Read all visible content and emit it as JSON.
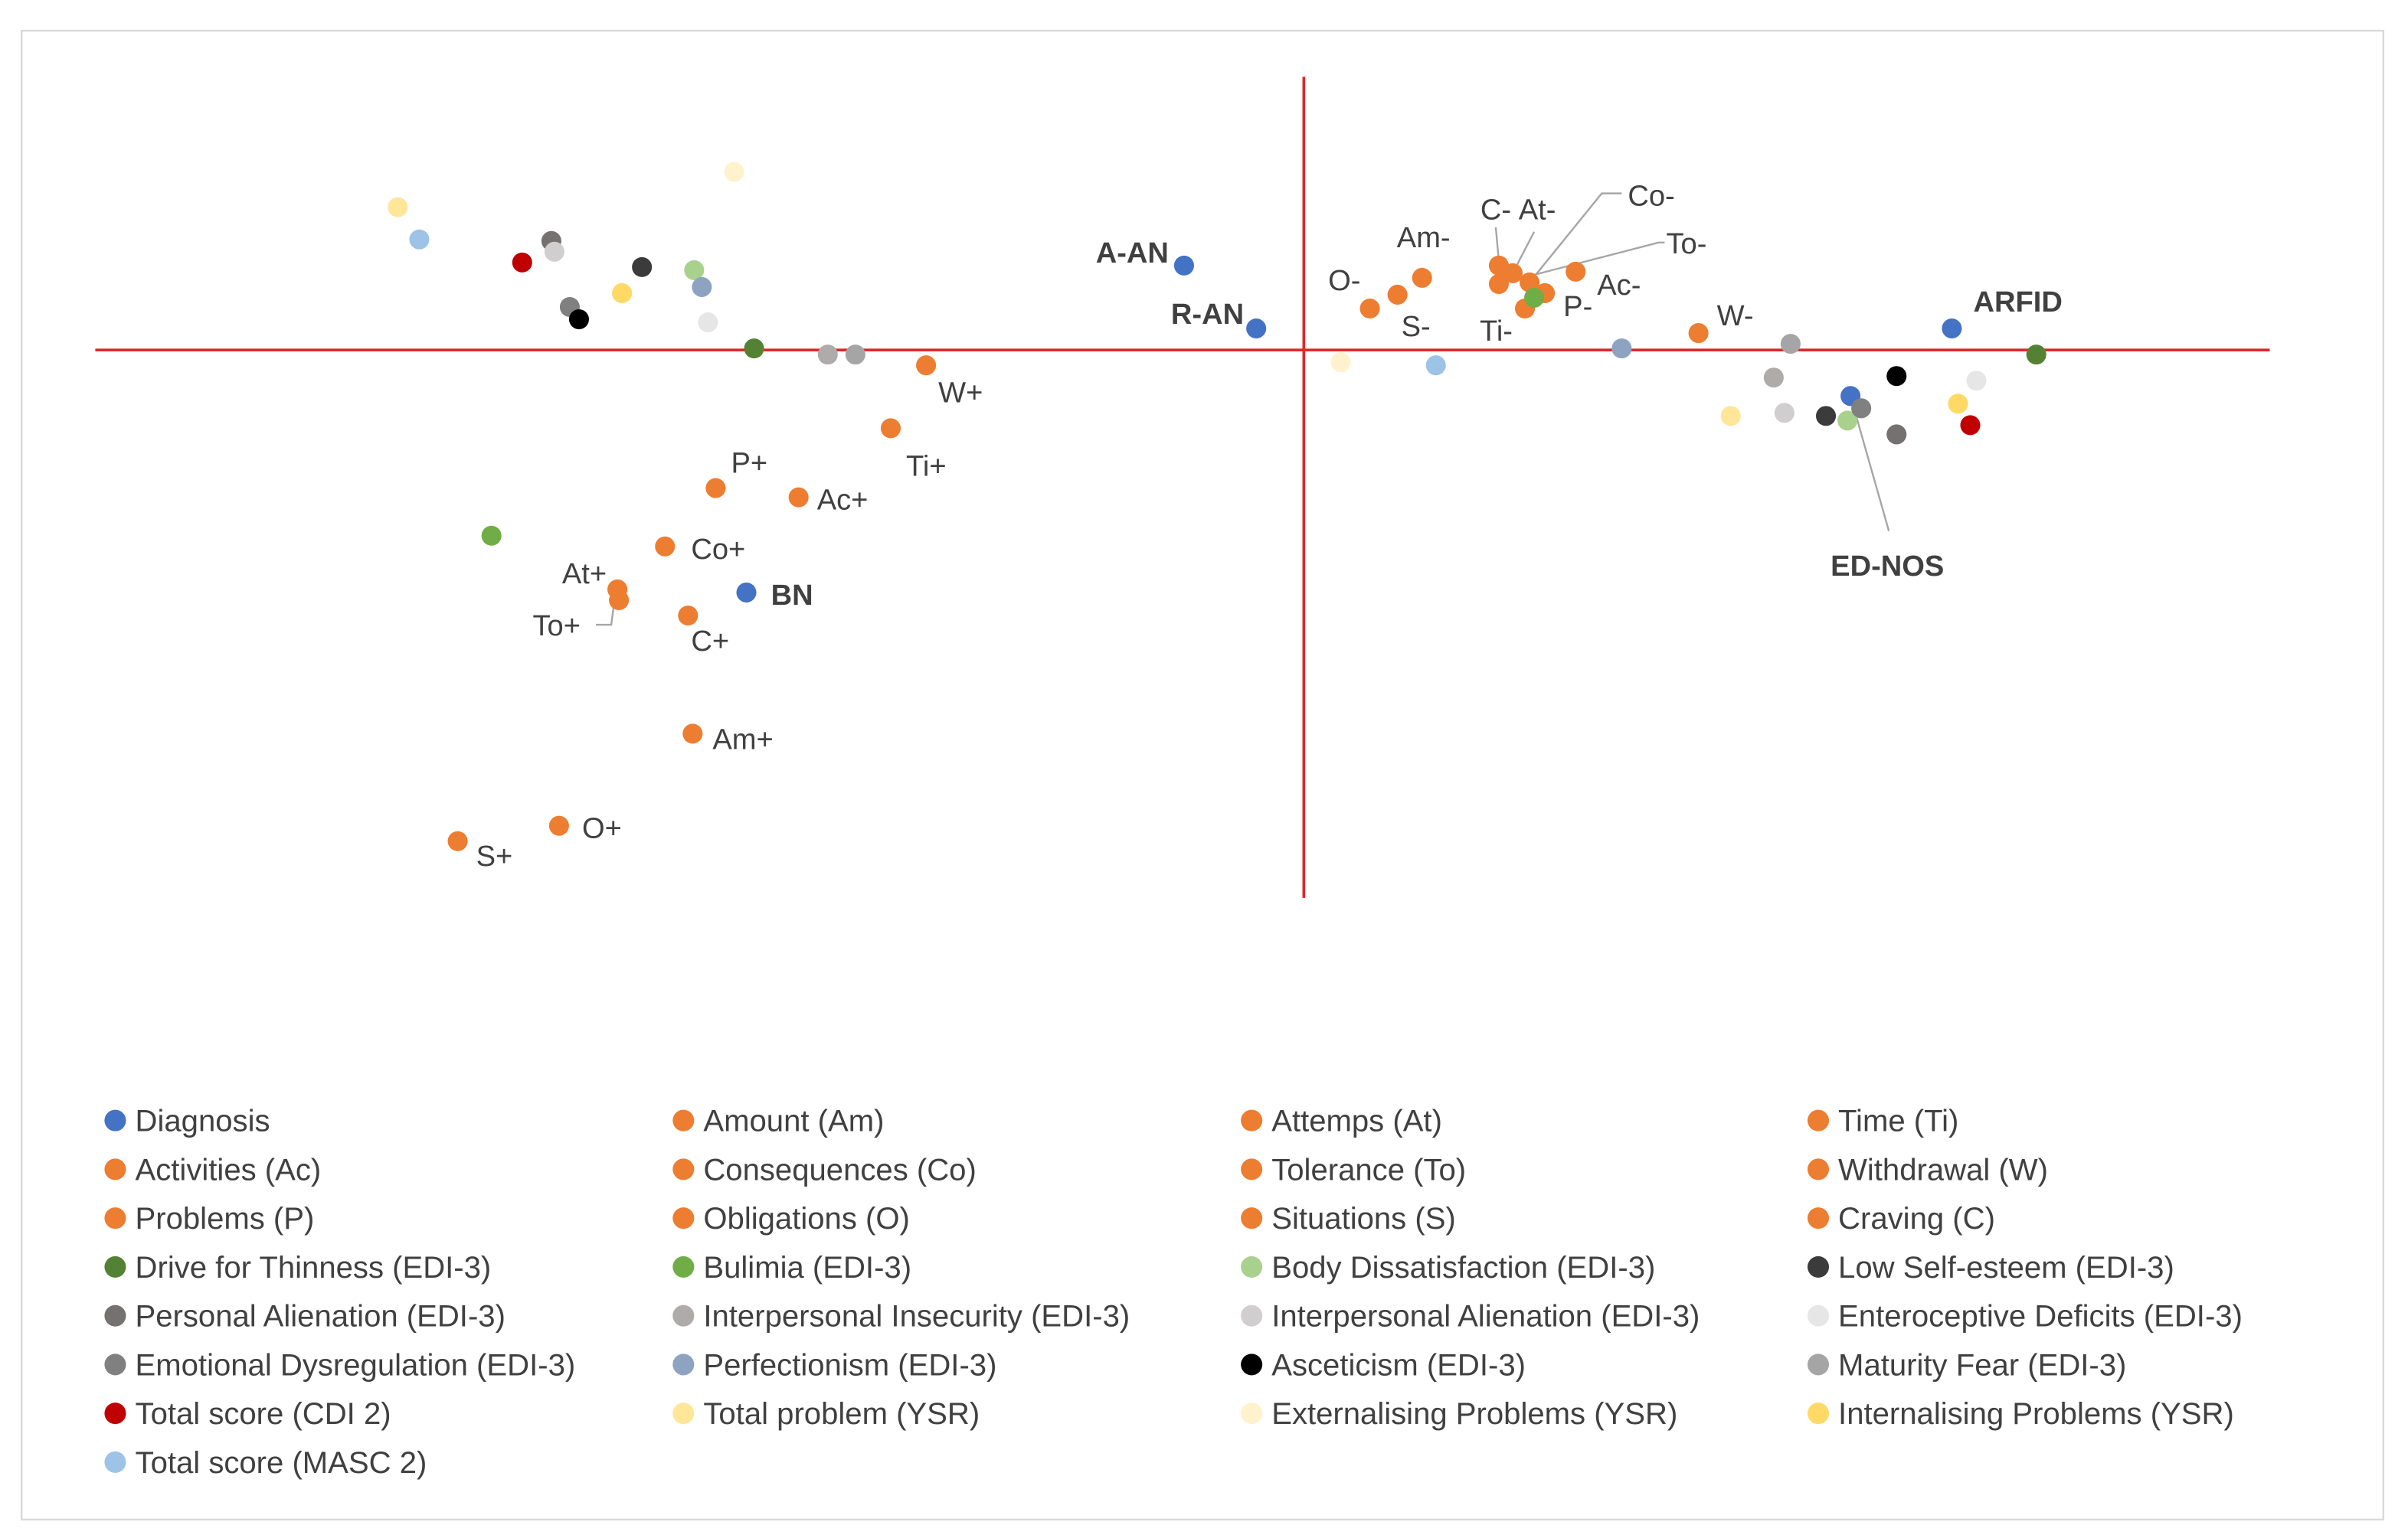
{
  "chart_data": {
    "type": "scatter",
    "title": "",
    "xlabel": "",
    "ylabel": "",
    "xlim": [
      -7.9,
      6.3
    ],
    "ylim": [
      -3.6,
      1.8
    ],
    "grid": false,
    "axes_cross_at": [
      0,
      0
    ],
    "legend_position": "bottom",
    "series": [
      {
        "name": "Diagnosis",
        "color": "#4472C4",
        "points": [
          {
            "x": -0.78,
            "y": 0.55,
            "label": "A-AN"
          },
          {
            "x": -0.31,
            "y": 0.14,
            "label": "R-AN"
          },
          {
            "x": -3.63,
            "y": -1.58,
            "label": "BN"
          },
          {
            "x": 4.22,
            "y": 0.14,
            "label": "ARFID"
          },
          {
            "x": 3.56,
            "y": -0.3,
            "label": "ED-NOS"
          }
        ]
      },
      {
        "name": "Amount (Am)",
        "color": "#ED7D31",
        "points": [
          {
            "x": -3.98,
            "y": -2.5,
            "label": "Am+"
          },
          {
            "x": 0.77,
            "y": 0.47,
            "label": "Am-"
          }
        ]
      },
      {
        "name": "Attemps (At)",
        "color": "#ED7D31",
        "points": [
          {
            "x": -4.47,
            "y": -1.56,
            "label": "At+"
          },
          {
            "x": 1.36,
            "y": 0.5,
            "label": "At-"
          }
        ]
      },
      {
        "name": "Time (Ti)",
        "color": "#ED7D31",
        "points": [
          {
            "x": -2.69,
            "y": -0.51,
            "label": "Ti+"
          },
          {
            "x": 1.44,
            "y": 0.27,
            "label": "Ti-"
          }
        ]
      },
      {
        "name": "Activities (Ac)",
        "color": "#ED7D31",
        "points": [
          {
            "x": -3.29,
            "y": -0.96,
            "label": "Ac+"
          },
          {
            "x": 1.77,
            "y": 0.51,
            "label": "Ac-"
          }
        ]
      },
      {
        "name": "Consequences (Co)",
        "color": "#ED7D31",
        "points": [
          {
            "x": -4.16,
            "y": -1.28,
            "label": "Co+"
          },
          {
            "x": 1.47,
            "y": 0.44,
            "label": "Co-"
          }
        ]
      },
      {
        "name": "Tolerance (To)",
        "color": "#ED7D31",
        "points": [
          {
            "x": -4.46,
            "y": -1.63,
            "label": "To+"
          },
          {
            "x": 1.27,
            "y": 0.43,
            "label": "To-"
          }
        ]
      },
      {
        "name": "Withdrawal (W)",
        "color": "#ED7D31",
        "points": [
          {
            "x": -2.46,
            "y": -0.1,
            "label": "W+"
          },
          {
            "x": 2.57,
            "y": 0.11,
            "label": "W-"
          }
        ]
      },
      {
        "name": "Problems (P)",
        "color": "#ED7D31",
        "points": [
          {
            "x": -3.83,
            "y": -0.9,
            "label": "P+"
          },
          {
            "x": 1.57,
            "y": 0.37,
            "label": "P-"
          }
        ]
      },
      {
        "name": "Obligations (O)",
        "color": "#ED7D31",
        "points": [
          {
            "x": -4.85,
            "y": -3.1,
            "label": "O+"
          },
          {
            "x": 0.43,
            "y": 0.27,
            "label": "O-"
          }
        ]
      },
      {
        "name": "Situations (S)",
        "color": "#ED7D31",
        "points": [
          {
            "x": -5.51,
            "y": -3.2,
            "label": "S+"
          },
          {
            "x": 0.61,
            "y": 0.36,
            "label": "S-"
          }
        ]
      },
      {
        "name": "Craving (C)",
        "color": "#ED7D31",
        "points": [
          {
            "x": -4.01,
            "y": -1.73,
            "label": "C+"
          },
          {
            "x": 1.27,
            "y": 0.55,
            "label": "C-"
          }
        ]
      },
      {
        "name": "Drive for Thinness (EDI-3)",
        "color": "#548235",
        "points": [
          {
            "x": -3.58,
            "y": 0.01
          },
          {
            "x": 4.77,
            "y": -0.03
          }
        ]
      },
      {
        "name": "Bulimia (EDI-3)",
        "color": "#70AD47",
        "points": [
          {
            "x": -5.29,
            "y": -1.21
          },
          {
            "x": 1.5,
            "y": 0.34
          }
        ]
      },
      {
        "name": "Body Dissatisfaction (EDI-3)",
        "color": "#A9D18E",
        "points": [
          {
            "x": -3.97,
            "y": 0.52
          },
          {
            "x": 3.54,
            "y": -0.46
          }
        ]
      },
      {
        "name": "Low Self-esteem (EDI-3)",
        "color": "#3B3B3B",
        "points": [
          {
            "x": -4.31,
            "y": 0.54
          },
          {
            "x": 3.4,
            "y": -0.43
          }
        ]
      },
      {
        "name": "Personal Alienation (EDI-3)",
        "color": "#767171",
        "points": [
          {
            "x": -4.9,
            "y": 0.71
          },
          {
            "x": 3.86,
            "y": -0.55
          }
        ]
      },
      {
        "name": "Interpersonal Insecurity (EDI-3)",
        "color": "#AFABAB",
        "points": [
          {
            "x": -3.1,
            "y": -0.03
          },
          {
            "x": 3.06,
            "y": -0.18
          }
        ]
      },
      {
        "name": "Interpersonal Alienation (EDI-3)",
        "color": "#D0CECE",
        "points": [
          {
            "x": -4.88,
            "y": 0.64
          },
          {
            "x": 3.13,
            "y": -0.41
          }
        ]
      },
      {
        "name": "Enteroceptive Deficits (EDI-3)",
        "color": "#E7E6E6",
        "points": [
          {
            "x": -3.88,
            "y": 0.18
          },
          {
            "x": 4.38,
            "y": -0.2
          }
        ]
      },
      {
        "name": "Emotional Dysregulation (EDI-3)",
        "color": "#808080",
        "points": [
          {
            "x": -4.78,
            "y": 0.28
          },
          {
            "x": 3.63,
            "y": -0.38
          }
        ]
      },
      {
        "name": "Perfectionism (EDI-3)",
        "color": "#8EA3C2",
        "points": [
          {
            "x": -3.92,
            "y": 0.41
          },
          {
            "x": 2.07,
            "y": 0.01
          }
        ]
      },
      {
        "name": "Asceticism (EDI-3)",
        "color": "#000000",
        "points": [
          {
            "x": -4.72,
            "y": 0.2
          },
          {
            "x": 3.86,
            "y": -0.17
          }
        ]
      },
      {
        "name": "Maturity Fear (EDI-3)",
        "color": "#A5A5A5",
        "points": [
          {
            "x": -2.92,
            "y": -0.03
          },
          {
            "x": 3.17,
            "y": 0.04
          }
        ]
      },
      {
        "name": "Total score (CDI 2)",
        "color": "#C00000",
        "points": [
          {
            "x": -5.09,
            "y": 0.57
          },
          {
            "x": 4.34,
            "y": -0.49
          }
        ]
      },
      {
        "name": "Total problem (YSR)",
        "color": "#FFE699",
        "points": [
          {
            "x": -5.9,
            "y": 0.93
          },
          {
            "x": 2.78,
            "y": -0.43
          }
        ]
      },
      {
        "name": "Externalising Problems (YSR)",
        "color": "#FFF2CC",
        "points": [
          {
            "x": -3.71,
            "y": 1.16
          },
          {
            "x": 0.24,
            "y": -0.08
          }
        ]
      },
      {
        "name": "Internalising Problems (YSR)",
        "color": "#FFD966",
        "points": [
          {
            "x": -4.44,
            "y": 0.37
          },
          {
            "x": 4.26,
            "y": -0.35
          }
        ]
      },
      {
        "name": "Total score (MASC 2)",
        "color": "#9DC3E6",
        "points": [
          {
            "x": -5.76,
            "y": 0.72
          },
          {
            "x": 0.86,
            "y": -0.1
          }
        ]
      }
    ]
  },
  "colors": {
    "axis": "#E32626",
    "frame": "#D9D9D9",
    "text": "#404040",
    "leader": "#A6A6A6"
  }
}
